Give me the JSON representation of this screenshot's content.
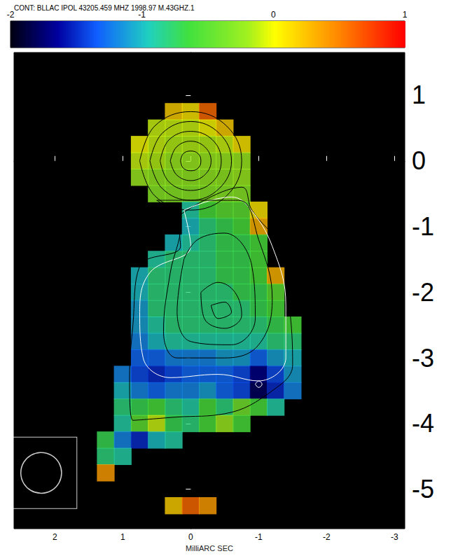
{
  "chart_data": {
    "type": "heatmap",
    "title": "CONT: BLLAC IPOL 43205.459 MHZ 1998.97 M.43GHZ.1",
    "x_label": "MilliARC SEC",
    "xlim": [
      2.6,
      -3.15
    ],
    "xticks": [
      2,
      1,
      0,
      -1,
      -2,
      -3
    ],
    "ylim": [
      -5.6,
      1.65
    ],
    "yticks": [
      1,
      0,
      -1,
      -2,
      -3,
      -4,
      -5
    ],
    "grid": false,
    "colorbar": {
      "range": [
        -2,
        1
      ],
      "ticks": [
        -2,
        -1,
        0,
        1
      ]
    },
    "cells": {
      "x": [
        1.5,
        1.25,
        1.0,
        0.75,
        0.5,
        0.25,
        0,
        -0.25,
        -0.5,
        -0.75,
        -1.0,
        -1.25,
        -1.5,
        -1.75
      ],
      "y": [
        1.0,
        0.75,
        0.5,
        0.25,
        0,
        -0.25,
        -0.5,
        -0.75,
        -1.0,
        -1.25,
        -1.5,
        -1.75,
        -2.0,
        -2.25,
        -2.5,
        -2.75,
        -3.0,
        -3.25,
        -3.5,
        -3.75,
        -4.0,
        -4.25,
        -4.5,
        -4.75,
        -5.0,
        -5.25
      ],
      "values": [
        [
          null,
          null,
          null,
          null,
          null,
          null,
          null,
          null,
          null,
          null,
          null,
          null,
          null,
          null
        ],
        [
          null,
          null,
          null,
          null,
          null,
          0.2,
          0.1,
          0.6,
          null,
          null,
          null,
          null,
          null,
          null
        ],
        [
          null,
          null,
          null,
          null,
          -0.1,
          -0.1,
          -0.1,
          0.0,
          0.2,
          null,
          null,
          null,
          null,
          null
        ],
        [
          null,
          null,
          null,
          0.0,
          -0.1,
          -0.15,
          -0.15,
          -0.15,
          -0.1,
          0.1,
          null,
          null,
          null,
          null
        ],
        [
          null,
          null,
          null,
          -0.1,
          -0.15,
          -0.2,
          -0.2,
          -0.2,
          -0.2,
          -0.2,
          null,
          null,
          null,
          null
        ],
        [
          null,
          null,
          null,
          -0.2,
          -0.25,
          -0.25,
          -0.25,
          -0.25,
          -0.25,
          -0.2,
          null,
          null,
          null,
          null
        ],
        [
          null,
          null,
          null,
          null,
          -0.3,
          -0.3,
          -0.3,
          -0.3,
          -0.3,
          -0.3,
          null,
          null,
          null,
          null
        ],
        [
          null,
          null,
          null,
          null,
          null,
          null,
          -0.9,
          -0.6,
          -0.5,
          -0.5,
          0.1,
          null,
          null,
          null
        ],
        [
          null,
          null,
          null,
          null,
          null,
          null,
          -1.0,
          -0.8,
          -0.7,
          -0.6,
          0.3,
          null,
          null,
          null
        ],
        [
          null,
          null,
          null,
          null,
          null,
          -1.0,
          -0.9,
          -0.8,
          -0.7,
          -0.7,
          -0.6,
          null,
          null,
          null
        ],
        [
          null,
          null,
          null,
          null,
          -0.9,
          -0.8,
          -0.8,
          -0.8,
          -0.7,
          -0.7,
          -0.6,
          null,
          null,
          null
        ],
        [
          null,
          null,
          null,
          -1.0,
          -0.8,
          -0.8,
          -0.8,
          -0.8,
          -0.7,
          -0.7,
          -0.6,
          0.3,
          null,
          null
        ],
        [
          null,
          null,
          null,
          -1.0,
          -0.8,
          -0.8,
          -0.8,
          -0.8,
          -0.8,
          -0.7,
          -0.7,
          -0.5,
          null,
          null
        ],
        [
          null,
          null,
          null,
          -1.1,
          -0.8,
          -0.8,
          -0.8,
          -0.8,
          -0.8,
          -0.8,
          -0.7,
          -0.6,
          null,
          null
        ],
        [
          null,
          null,
          null,
          -1.1,
          -0.9,
          -0.8,
          -0.8,
          -0.8,
          -0.8,
          -0.8,
          -0.8,
          -0.7,
          -0.6,
          null
        ],
        [
          null,
          null,
          null,
          -1.2,
          -1.0,
          -0.9,
          -0.9,
          -0.9,
          -0.9,
          -0.9,
          -0.9,
          -0.8,
          -0.8,
          null
        ],
        [
          null,
          null,
          null,
          -1.3,
          -1.3,
          -1.2,
          -1.2,
          -1.2,
          -1.1,
          -1.1,
          -1.3,
          -1.1,
          -1.0,
          null
        ],
        [
          null,
          null,
          -1.2,
          -1.4,
          -1.5,
          -1.4,
          -1.3,
          -1.3,
          -1.3,
          -1.4,
          -1.7,
          -1.4,
          -1.1,
          null
        ],
        [
          null,
          null,
          -1.0,
          -1.2,
          -1.3,
          -1.2,
          -1.2,
          -1.1,
          -1.3,
          -1.4,
          -1.8,
          -1.5,
          -1.2,
          null
        ],
        [
          null,
          null,
          -0.8,
          -0.7,
          -0.6,
          -0.8,
          -0.9,
          -0.6,
          -0.8,
          -0.4,
          -0.6,
          -0.9,
          null,
          null
        ],
        [
          null,
          null,
          -0.9,
          -0.5,
          -0.1,
          -0.7,
          -0.8,
          -0.6,
          -0.2,
          -0.6,
          null,
          null,
          null,
          null
        ],
        [
          null,
          -0.7,
          -1.2,
          -1.5,
          -1.0,
          -0.9,
          null,
          null,
          null,
          null,
          null,
          null,
          null,
          null
        ],
        [
          null,
          -0.8,
          -0.9,
          null,
          null,
          null,
          null,
          null,
          null,
          null,
          null,
          null,
          null,
          null
        ],
        [
          null,
          0.4,
          null,
          null,
          null,
          null,
          null,
          null,
          null,
          null,
          null,
          null,
          null,
          null
        ],
        [
          null,
          null,
          null,
          null,
          null,
          null,
          null,
          null,
          null,
          null,
          null,
          null,
          null,
          null
        ],
        [
          null,
          null,
          null,
          null,
          null,
          0.2,
          0.6,
          0.4,
          null,
          null,
          null,
          null,
          null,
          null
        ]
      ]
    },
    "contours": [
      {
        "color": "black",
        "points": [
          [
            0.75,
            0
          ],
          [
            0.53,
            0.53
          ],
          [
            0,
            0.75
          ],
          [
            -0.53,
            0.53
          ],
          [
            -0.75,
            0
          ],
          [
            -0.53,
            -0.53
          ],
          [
            0,
            -0.75
          ],
          [
            0.53,
            -0.53
          ]
        ]
      },
      {
        "color": "black",
        "points": [
          [
            0.6,
            0
          ],
          [
            0.42,
            0.42
          ],
          [
            0,
            0.6
          ],
          [
            -0.42,
            0.42
          ],
          [
            -0.6,
            0
          ],
          [
            -0.42,
            -0.42
          ],
          [
            0,
            -0.6
          ],
          [
            0.42,
            -0.42
          ]
        ]
      },
      {
        "color": "black",
        "points": [
          [
            0.45,
            0
          ],
          [
            0.32,
            0.32
          ],
          [
            0,
            0.45
          ],
          [
            -0.32,
            0.32
          ],
          [
            -0.45,
            0
          ],
          [
            -0.32,
            -0.32
          ],
          [
            0,
            -0.45
          ],
          [
            0.32,
            -0.32
          ]
        ]
      },
      {
        "color": "black",
        "points": [
          [
            0.3,
            0
          ],
          [
            0.21,
            0.21
          ],
          [
            0,
            0.3
          ],
          [
            -0.21,
            0.21
          ],
          [
            -0.3,
            0
          ],
          [
            -0.21,
            -0.21
          ],
          [
            0,
            -0.3
          ],
          [
            0.21,
            -0.21
          ]
        ]
      },
      {
        "color": "black",
        "points": [
          [
            0.15,
            0
          ],
          [
            0.11,
            0.11
          ],
          [
            0,
            0.15
          ],
          [
            -0.11,
            0.11
          ],
          [
            -0.15,
            0
          ],
          [
            -0.11,
            -0.11
          ],
          [
            0,
            -0.15
          ],
          [
            0.11,
            -0.11
          ]
        ]
      },
      {
        "color": "black",
        "points": [
          [
            0.2,
            -0.85
          ],
          [
            0.15,
            -1.3
          ],
          [
            0.75,
            -1.6
          ],
          [
            0.85,
            -2.5
          ],
          [
            0.9,
            -3.3
          ],
          [
            0.85,
            -3.95
          ],
          [
            0.2,
            -3.9
          ],
          [
            -0.5,
            -3.85
          ],
          [
            -1.2,
            -3.5
          ],
          [
            -1.5,
            -3.1
          ],
          [
            -1.45,
            -2.2
          ],
          [
            -1.3,
            -1.3
          ],
          [
            -0.9,
            -0.75
          ],
          [
            -0.75,
            -0.4
          ]
        ]
      },
      {
        "color": "white",
        "points": [
          [
            0.1,
            -0.75
          ],
          [
            0.0,
            -1.3
          ],
          [
            0.6,
            -1.7
          ],
          [
            0.75,
            -2.3
          ],
          [
            0.7,
            -3.0
          ],
          [
            0.3,
            -3.3
          ],
          [
            -0.4,
            -3.25
          ],
          [
            -1.0,
            -3.35
          ],
          [
            -1.4,
            -3.0
          ],
          [
            -1.4,
            -2.2
          ],
          [
            -1.2,
            -1.3
          ],
          [
            -0.85,
            -0.7
          ],
          [
            -0.6,
            -0.55
          ]
        ]
      },
      {
        "color": "black",
        "points": [
          [
            0.5,
            -0.6
          ],
          [
            0.15,
            -1.0
          ],
          [
            0.3,
            -1.7
          ],
          [
            0.4,
            -2.6
          ],
          [
            0.2,
            -3.0
          ],
          [
            -0.5,
            -3.0
          ],
          [
            -1.0,
            -2.8
          ],
          [
            -1.2,
            -2.1
          ],
          [
            -1.0,
            -1.2
          ],
          [
            -0.7,
            -0.6
          ]
        ]
      },
      {
        "color": "black",
        "points": [
          [
            0.1,
            -1.5
          ],
          [
            0.2,
            -2.3
          ],
          [
            0.0,
            -2.75
          ],
          [
            -0.6,
            -2.8
          ],
          [
            -0.95,
            -2.4
          ],
          [
            -0.9,
            -1.6
          ],
          [
            -0.5,
            -1.1
          ],
          [
            -0.1,
            -1.2
          ]
        ]
      },
      {
        "color": "black",
        "points": [
          [
            -0.15,
            -2.0
          ],
          [
            -0.2,
            -2.4
          ],
          [
            -0.5,
            -2.55
          ],
          [
            -0.75,
            -2.35
          ],
          [
            -0.65,
            -2.0
          ],
          [
            -0.4,
            -1.85
          ]
        ]
      },
      {
        "color": "black",
        "points": [
          [
            -0.3,
            -2.2
          ],
          [
            -0.4,
            -2.4
          ],
          [
            -0.6,
            -2.3
          ],
          [
            -0.5,
            -2.15
          ]
        ]
      },
      {
        "color": "white",
        "points": [
          [
            -0.95,
            -3.4
          ],
          [
            -1.0,
            -3.35
          ],
          [
            -1.05,
            -3.4
          ],
          [
            -1.0,
            -3.45
          ]
        ]
      }
    ],
    "beam": {
      "x": 2.2,
      "y": -4.75,
      "radius": 0.3
    }
  }
}
